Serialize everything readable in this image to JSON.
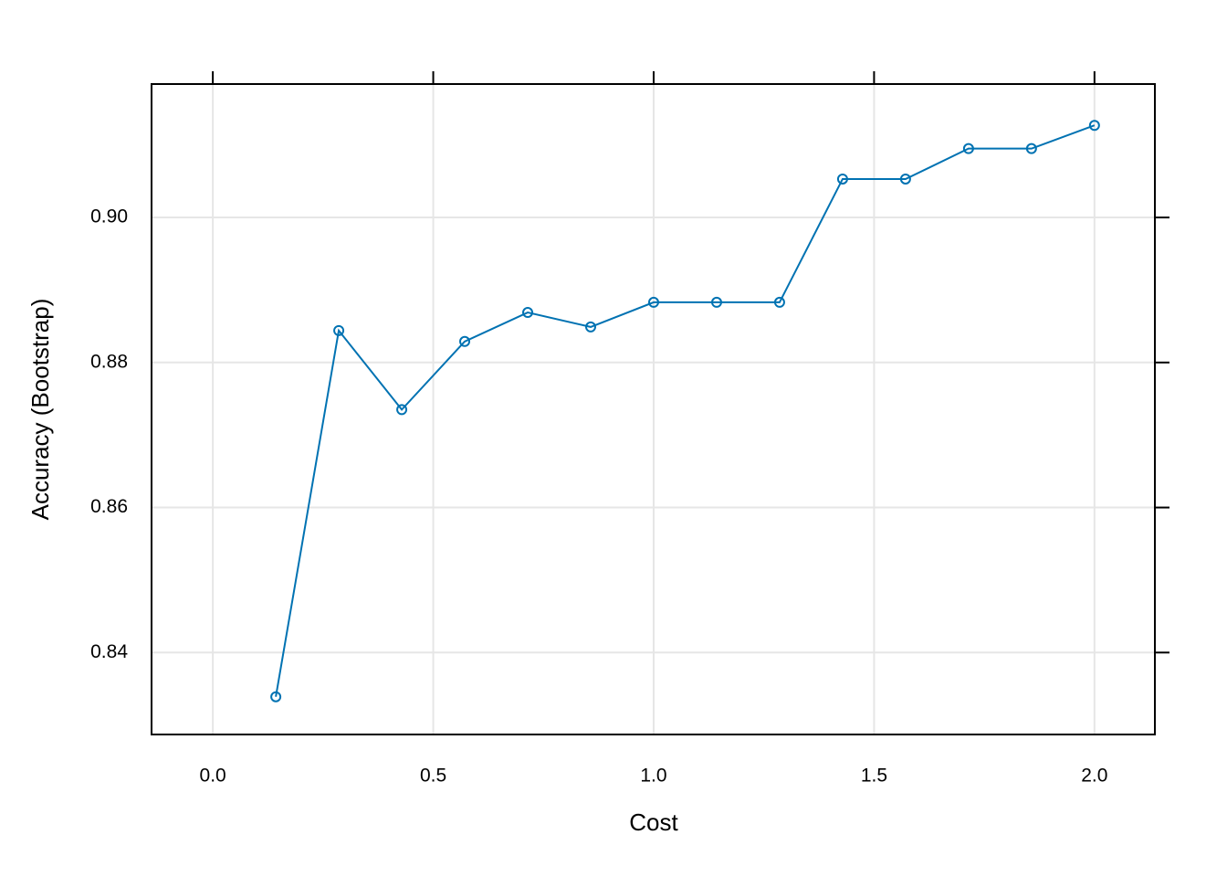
{
  "chart_data": {
    "type": "line",
    "xlabel": "Cost",
    "ylabel": "Accuracy (Bootstrap)",
    "x": [
      0.1429,
      0.2857,
      0.4286,
      0.5714,
      0.7143,
      0.8571,
      1.0,
      1.1429,
      1.2857,
      1.4286,
      1.5714,
      1.7143,
      1.8571,
      2.0
    ],
    "series": [
      {
        "color": "#0072b2",
        "values": [
          0.8339,
          0.8844,
          0.8735,
          0.8829,
          0.8869,
          0.8849,
          0.8883,
          0.8883,
          0.8883,
          0.9053,
          0.9053,
          0.9095,
          0.9095,
          0.9127
        ]
      }
    ],
    "xlim": [
      -0.139,
      2.137
    ],
    "ylim": [
      0.8287,
      0.9184
    ],
    "xticks": [
      {
        "value": 0,
        "label": "0.0"
      },
      0.5,
      {
        "value": 1,
        "label": "1.0"
      },
      1.5,
      {
        "value": 2,
        "label": "2.0"
      }
    ],
    "yticks": [
      0.84,
      0.86,
      0.88,
      {
        "value": 0.9,
        "label": "0.90"
      }
    ],
    "grid": true
  }
}
